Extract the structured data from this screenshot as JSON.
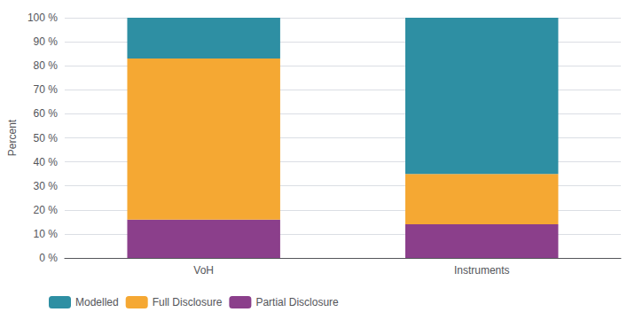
{
  "chart_data": {
    "type": "bar",
    "stacked": true,
    "categories": [
      "VoH",
      "Instruments"
    ],
    "series": [
      {
        "name": "Partial Disclosure",
        "color": "#8B3F8B",
        "values": [
          16,
          14
        ]
      },
      {
        "name": "Full Disclosure",
        "color": "#F5A833",
        "values": [
          67,
          21
        ]
      },
      {
        "name": "Modelled",
        "color": "#2E8FA3",
        "values": [
          17,
          65
        ]
      }
    ],
    "ylabel": "Percent",
    "ylim": [
      0,
      100
    ],
    "yticks": [
      {
        "value": 0,
        "label": "0 %"
      },
      {
        "value": 10,
        "label": "10 %"
      },
      {
        "value": 20,
        "label": "20 %"
      },
      {
        "value": 30,
        "label": "30 %"
      },
      {
        "value": 40,
        "label": "40 %"
      },
      {
        "value": 50,
        "label": "50 %"
      },
      {
        "value": 60,
        "label": "60 %"
      },
      {
        "value": 70,
        "label": "70 %"
      },
      {
        "value": 80,
        "label": "80 %"
      },
      {
        "value": 90,
        "label": "90 %"
      },
      {
        "value": 100,
        "label": "100 %"
      }
    ],
    "grid": true,
    "legend": "lower left"
  }
}
